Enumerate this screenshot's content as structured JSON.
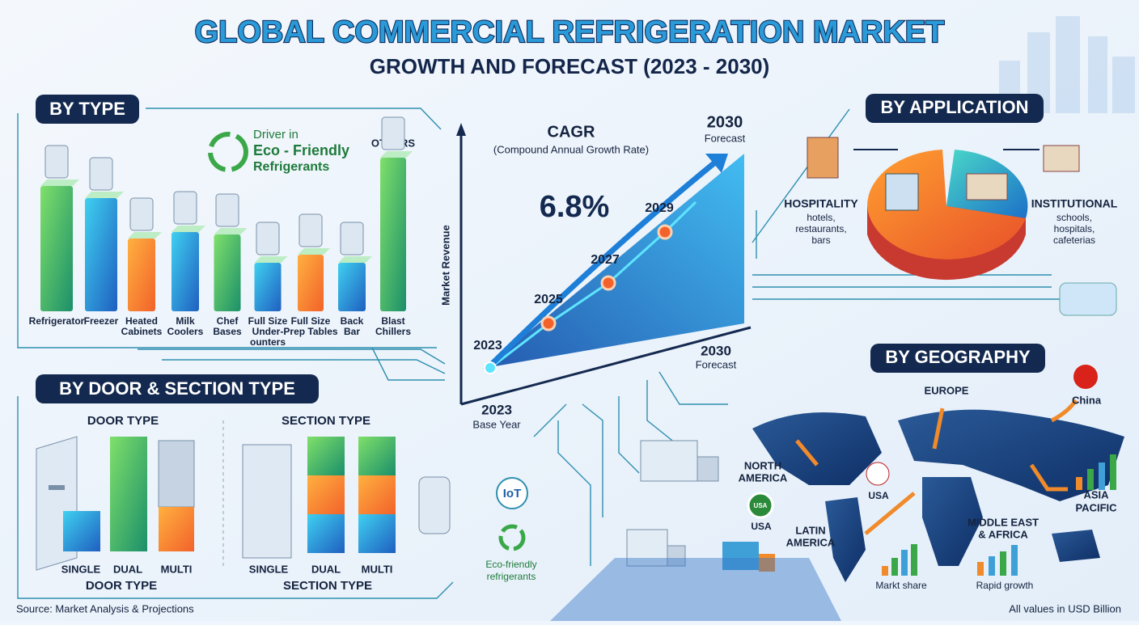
{
  "header": {
    "title": "GLOBAL COMMERCIAL REFRIGERATION MARKET",
    "subtitle": "GROWTH AND FORECAST (2023 - 2030)"
  },
  "by_type": {
    "heading": "BY TYPE",
    "driver": [
      "Driver in",
      "Eco - Friendly",
      "Refrigerants"
    ],
    "others": "OTHERS",
    "items": [
      [
        "Refrigerator"
      ],
      [
        "Freezer"
      ],
      [
        "Heated",
        "Cabinets"
      ],
      [
        "Milk",
        "Coolers"
      ],
      [
        "Chef",
        "Bases"
      ],
      [
        "Full Size",
        "Under-",
        "ounters"
      ],
      [
        "Full Size",
        "Prep Tables"
      ],
      [
        "Back",
        "Bar"
      ],
      [
        "Blast",
        "Chillers"
      ]
    ]
  },
  "growth": {
    "cagr": "CAGR",
    "cagr_note": "(Compound Annual Growth Rate)",
    "cagr_value": "6.8%",
    "y_axis": "Market Revenue",
    "points": [
      "2023",
      "2025",
      "2027",
      "2029"
    ],
    "top_year": "2030",
    "top_note": "Forecast",
    "right_year": "2030",
    "right_note": "Forecast",
    "base_year": "2023",
    "base_note": "Base Year"
  },
  "by_application": {
    "heading": "BY APPLICATION",
    "hospitality": {
      "title": "HOSPITALITY",
      "lines": [
        "hotels,",
        "restaurants,",
        "bars"
      ]
    },
    "institutional": {
      "title": "INSTITUTIONAL",
      "lines": [
        "schools,",
        "hospitals,",
        "cafeterias"
      ]
    }
  },
  "by_door": {
    "heading": "BY DOOR & SECTION TYPE",
    "door_title": "DOOR TYPE",
    "section_title": "SECTION TYPE",
    "door_items": [
      "SINGLE",
      "DUAL",
      "MULTI"
    ],
    "section_items": [
      "SINGLE",
      "DUAL",
      "MULTI"
    ],
    "door_footer": "DOOR TYPE",
    "section_footer": "SECTION TYPE"
  },
  "middle": {
    "iot": "IoT",
    "eco": [
      "Eco-friendly",
      "refrigerants"
    ]
  },
  "by_geography": {
    "heading": "BY GEOGRAPHY",
    "europe": "EUROPE",
    "china": "China",
    "north_america": [
      "NORTH",
      "AMERICA"
    ],
    "usa_flag": "USA",
    "usa_badge": "USA",
    "usa_badge_label": "USA",
    "latin_america": [
      "LATIN",
      "AMERICA"
    ],
    "mea": [
      "MIDDLE EAST",
      "& AFRICA"
    ],
    "asia_pacific": [
      "ASIA",
      "PACIFIC"
    ],
    "market_share": "Markt share",
    "rapid_growth": "Rapid growth"
  },
  "footer": {
    "source": "Source: Market Analysis & Projections",
    "units": "All values in USD Billion"
  }
}
